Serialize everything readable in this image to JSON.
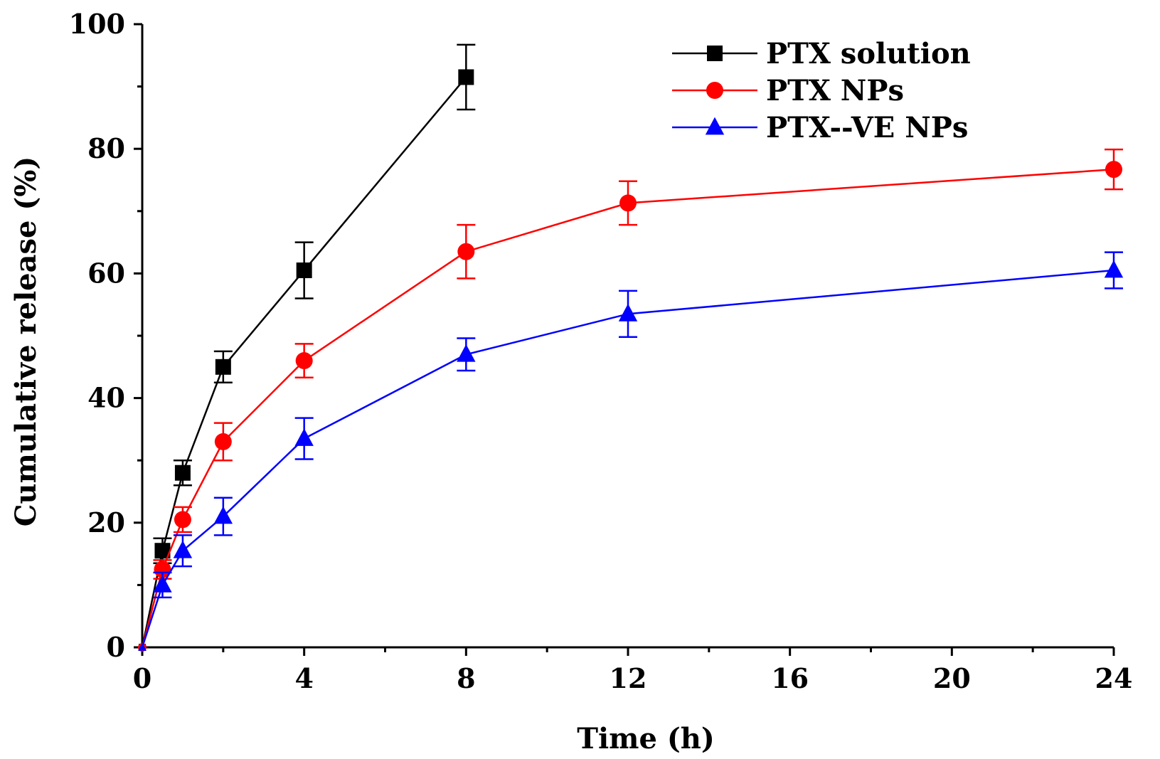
{
  "chart_data": {
    "type": "line",
    "title": "",
    "xlabel": "Time (h)",
    "ylabel": "Cumulative release (%)",
    "xlim": [
      0,
      24
    ],
    "ylim": [
      0,
      100
    ],
    "xticks": [
      "0",
      "4",
      "8",
      "12",
      "16",
      "20",
      "24"
    ],
    "yticks": [
      "0",
      "20",
      "40",
      "60",
      "80",
      "100"
    ],
    "grid": false,
    "legend_position": "top-right",
    "series": [
      {
        "name": "PTX solution",
        "color": "#000000",
        "marker": "square",
        "x": [
          0,
          0.5,
          1,
          2,
          4,
          8
        ],
        "y": [
          0,
          15.5,
          28,
          45,
          60.5,
          91.5
        ],
        "err": [
          0,
          2,
          2,
          2.5,
          4.5,
          5.2
        ]
      },
      {
        "name": "PTX NPs",
        "color": "#ff0000",
        "marker": "circle",
        "x": [
          0,
          0.5,
          1,
          2,
          4,
          8,
          12,
          24
        ],
        "y": [
          0,
          12.5,
          20.5,
          33,
          46,
          63.5,
          71.3,
          76.7
        ],
        "err": [
          0,
          1.5,
          2,
          3,
          2.7,
          4.3,
          3.5,
          3.2
        ]
      },
      {
        "name": "PTX--VE NPs",
        "color": "#0000ff",
        "marker": "triangle",
        "x": [
          0,
          0.5,
          1,
          2,
          4,
          8,
          12,
          24
        ],
        "y": [
          0,
          10,
          15.5,
          21,
          33.5,
          47,
          53.5,
          60.5
        ],
        "err": [
          0,
          2,
          2.5,
          3,
          3.3,
          2.6,
          3.7,
          2.9
        ]
      }
    ]
  }
}
